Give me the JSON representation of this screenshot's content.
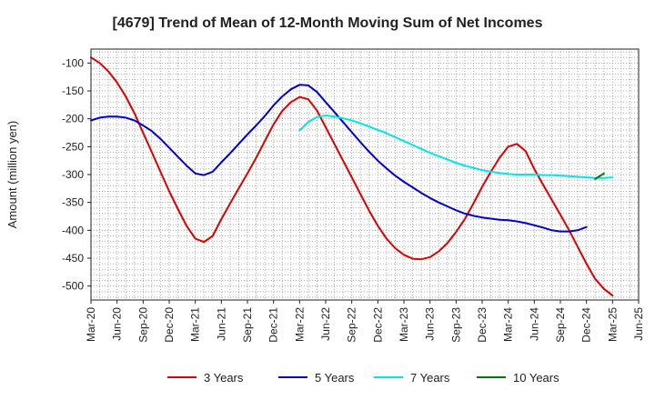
{
  "chart_data": {
    "type": "line",
    "title": "[4679]  Trend of Mean of 12-Month Moving Sum of Net Incomes",
    "xlabel": "",
    "ylabel": "Amount (million yen)",
    "ylim": [
      -525,
      -75
    ],
    "yticks": [
      -100,
      -150,
      -200,
      -250,
      -300,
      -350,
      -400,
      -450,
      -500
    ],
    "xticks": [
      "Mar-20",
      "Jun-20",
      "Sep-20",
      "Dec-20",
      "Mar-21",
      "Jun-21",
      "Sep-21",
      "Dec-21",
      "Mar-22",
      "Jun-22",
      "Sep-22",
      "Dec-22",
      "Mar-23",
      "Jun-23",
      "Sep-23",
      "Dec-23",
      "Mar-24",
      "Jun-24",
      "Sep-24",
      "Dec-24",
      "Mar-25",
      "Jun-25"
    ],
    "x_start": "Mar-20",
    "x_unit": "months since Mar-20",
    "grid": true,
    "legend_position": "bottom",
    "series": [
      {
        "name": "3 Years",
        "color": "#dd0000",
        "start_month": 0,
        "values": [
          -90,
          -100,
          -115,
          -135,
          -160,
          -190,
          -225,
          -260,
          -295,
          -330,
          -362,
          -392,
          -415,
          -421,
          -410,
          -380,
          -352,
          -325,
          -298,
          -270,
          -240,
          -210,
          -186,
          -170,
          -161,
          -165,
          -185,
          -215,
          -245,
          -275,
          -305,
          -335,
          -365,
          -392,
          -415,
          -432,
          -444,
          -451,
          -452,
          -448,
          -438,
          -423,
          -403,
          -380,
          -352,
          -322,
          -295,
          -270,
          -250,
          -245,
          -258,
          -290,
          -318,
          -345,
          -372,
          -400,
          -430,
          -460,
          -487,
          -505,
          -517
        ]
      },
      {
        "name": "5 Years",
        "color": "#0000cc",
        "start_month": 0,
        "values": [
          -203,
          -198,
          -196,
          -196,
          -198,
          -203,
          -212,
          -222,
          -236,
          -252,
          -268,
          -284,
          -298,
          -301,
          -295,
          -278,
          -262,
          -245,
          -228,
          -212,
          -195,
          -176,
          -160,
          -147,
          -139,
          -140,
          -152,
          -170,
          -188,
          -206,
          -224,
          -242,
          -259,
          -275,
          -289,
          -302,
          -313,
          -323,
          -333,
          -342,
          -350,
          -357,
          -364,
          -370,
          -374,
          -377,
          -379,
          -381,
          -382,
          -384,
          -387,
          -391,
          -395,
          -400,
          -402,
          -402,
          -400,
          -394
        ]
      },
      {
        "name": "7 Years",
        "color": "#00e5e5",
        "start_month": 24,
        "values": [
          -221,
          -206,
          -197,
          -194,
          -196,
          -199,
          -203,
          -208,
          -214,
          -220,
          -226,
          -233,
          -240,
          -247,
          -254,
          -261,
          -267,
          -273,
          -279,
          -284,
          -288,
          -292,
          -295,
          -297,
          -299,
          -300,
          -300,
          -300,
          -301,
          -301,
          -302,
          -303,
          -304,
          -305,
          -306,
          -306,
          -305
        ]
      },
      {
        "name": "10 Years",
        "color": "#007700",
        "start_month": 58,
        "values": [
          -308,
          -298
        ]
      }
    ]
  }
}
